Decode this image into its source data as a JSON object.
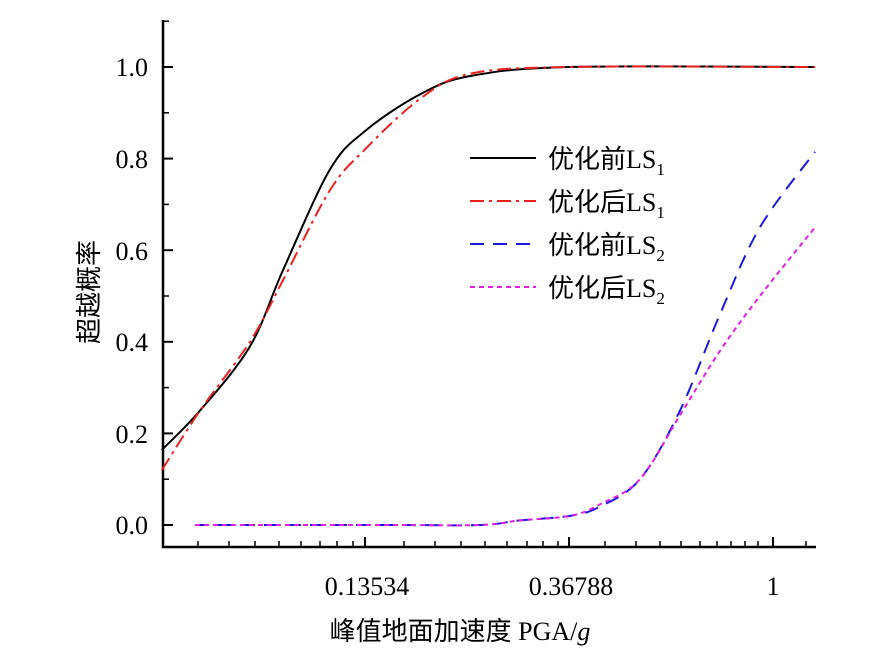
{
  "chart_data": {
    "type": "line",
    "title": "",
    "xlabel": "峰值地面加速度 PGA/",
    "xlabel_italic": "g",
    "ylabel": "超越概率",
    "x_scale": "log",
    "xlim": [
      0.05,
      1.23
    ],
    "ylim": [
      0.0,
      1.05
    ],
    "x_ticks": [
      0.13534,
      0.36788,
      1
    ],
    "x_tick_labels": [
      "0.13534",
      "0.36788",
      "1"
    ],
    "y_ticks": [
      0.0,
      0.2,
      0.4,
      0.6,
      0.8,
      1.0
    ],
    "y_tick_labels": [
      "0.0",
      "0.2",
      "0.4",
      "0.6",
      "0.8",
      "1.0"
    ],
    "grid": false,
    "legend_position": "center-right",
    "series": [
      {
        "name": "优化前LS",
        "sub": "1",
        "color": "#000000",
        "dash": "",
        "x": [
          0.05,
          0.0603,
          0.077,
          0.0906,
          0.1138,
          0.1353,
          0.177,
          0.226,
          0.3679,
          1.229
        ],
        "y": [
          0.164,
          0.25,
          0.39,
          0.557,
          0.775,
          0.86,
          0.94,
          0.98,
          1.0,
          1.0
        ]
      },
      {
        "name": "优化后LS",
        "sub": "1",
        "color": "#e8231f",
        "dash": "14,5,3,5",
        "x": [
          0.05,
          0.0603,
          0.077,
          0.0906,
          0.1138,
          0.1353,
          0.177,
          0.226,
          0.3679,
          1.229
        ],
        "y": [
          0.12,
          0.25,
          0.4,
          0.535,
          0.73,
          0.82,
          0.93,
          0.985,
          1.0,
          1.0
        ]
      },
      {
        "name": "优化前LS",
        "sub": "2",
        "color": "#1a1adf",
        "dash": "14,9",
        "x": [
          0.0588,
          0.15,
          0.238,
          0.289,
          0.37,
          0.428,
          0.521,
          0.634,
          0.771,
          0.938,
          1.229
        ],
        "y": [
          0.0,
          0.0,
          0.0,
          0.01,
          0.02,
          0.04,
          0.1,
          0.25,
          0.46,
          0.65,
          0.815
        ]
      },
      {
        "name": "优化后LS",
        "sub": "2",
        "color": "#e020e0",
        "dash": "5,4",
        "x": [
          0.0588,
          0.15,
          0.238,
          0.289,
          0.37,
          0.428,
          0.521,
          0.634,
          0.771,
          0.938,
          1.229
        ],
        "y": [
          0.0,
          0.0,
          0.0,
          0.01,
          0.02,
          0.045,
          0.1,
          0.24,
          0.38,
          0.5,
          0.65
        ]
      }
    ]
  }
}
